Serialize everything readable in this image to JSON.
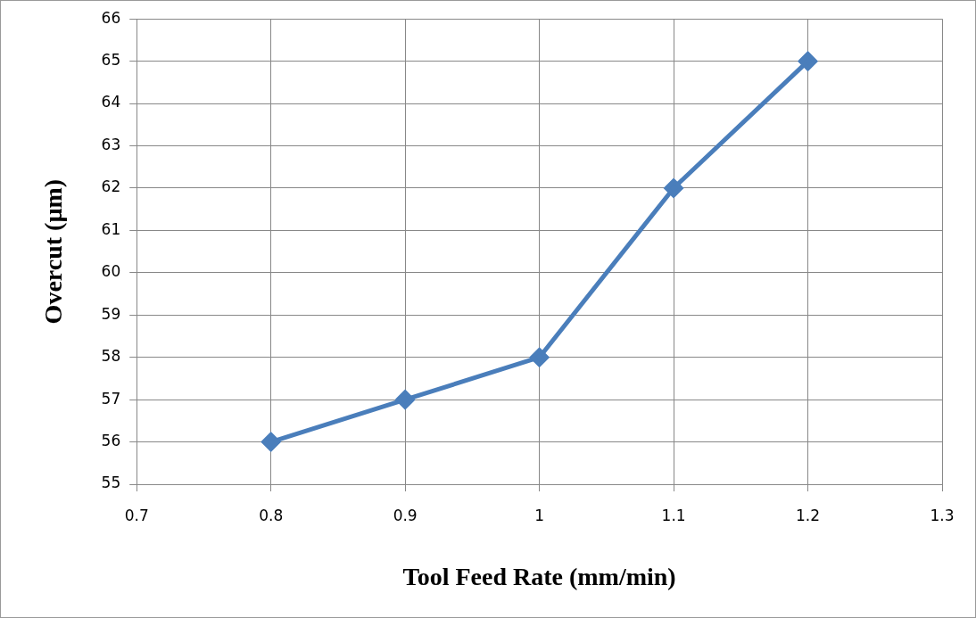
{
  "chart_data": {
    "type": "line",
    "xlabel": "Tool Feed Rate (mm/min)",
    "ylabel": "Overcut (µm)",
    "x": [
      0.8,
      0.9,
      1,
      1.1,
      1.2
    ],
    "series": [
      {
        "color": "#4a7ebb",
        "values": [
          56,
          57,
          58,
          62,
          65
        ]
      }
    ],
    "xlim": [
      0.7,
      1.3
    ],
    "xticks": [
      0.7,
      0.8,
      0.9,
      1,
      1.1,
      1.2,
      1.3
    ],
    "ylim": [
      55,
      66
    ],
    "yticks": [
      55,
      56,
      57,
      58,
      59,
      60,
      61,
      62,
      63,
      64,
      65,
      66
    ],
    "grid": true,
    "marker": "diamond",
    "line_style": "solid"
  }
}
